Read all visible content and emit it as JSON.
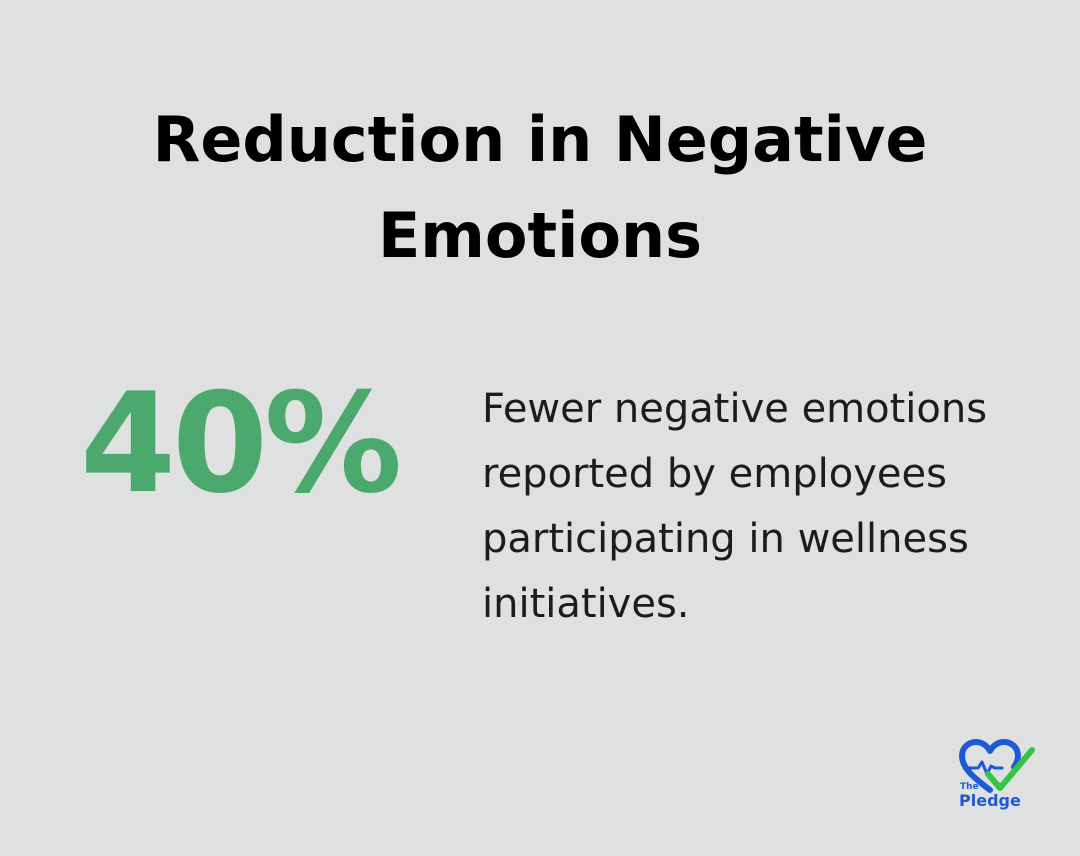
{
  "title_lines": [
    "Reduction in Negative",
    "Emotions"
  ],
  "stat": {
    "value": "40%",
    "description": "Fewer negative emotions reported by employees participating in wellness initiatives."
  },
  "logo": {
    "small_text": "The",
    "name": "Pledge",
    "icon": "heart-check-icon"
  },
  "colors": {
    "background": "#dfe1e0",
    "accent": "#4ca96d",
    "logo_blue": "#1d5bd6",
    "logo_green": "#36c447"
  }
}
